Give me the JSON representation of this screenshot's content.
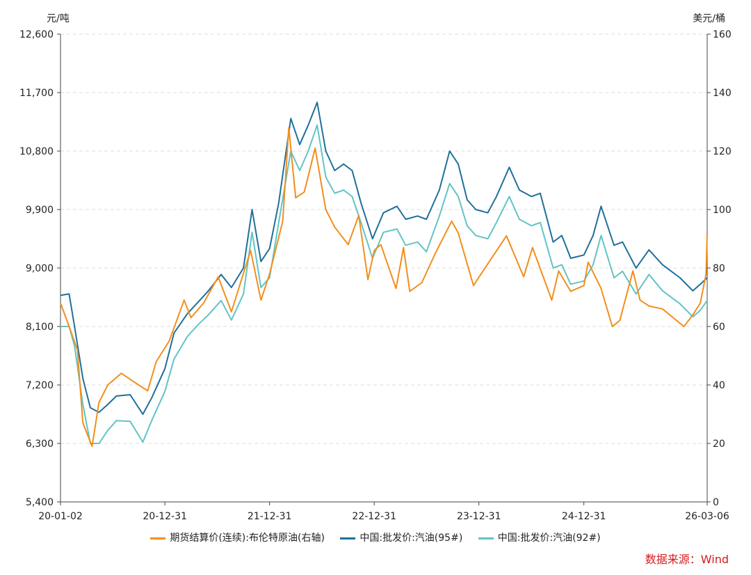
{
  "chart_data": {
    "type": "line",
    "left_axis_unit": "元/吨",
    "right_axis_unit": "美元/桶",
    "left_ylim": [
      5400,
      12600
    ],
    "left_ticks": [
      "12,600",
      "11,700",
      "10,800",
      "9,900",
      "9,000",
      "8,100",
      "7,200",
      "6,300",
      "5,400"
    ],
    "right_ylim": [
      0,
      160
    ],
    "right_ticks": [
      "160",
      "140",
      "120",
      "100",
      "80",
      "60",
      "40",
      "20",
      "0"
    ],
    "x_range": [
      "2020-01-02",
      "2026-03-06"
    ],
    "x_ticks": [
      {
        "date": "2020-01-02",
        "label": "20-01-02"
      },
      {
        "date": "2020-12-31",
        "label": "20-12-31"
      },
      {
        "date": "2021-12-31",
        "label": "21-12-31"
      },
      {
        "date": "2022-12-31",
        "label": "22-12-31"
      },
      {
        "date": "2023-12-31",
        "label": "23-12-31"
      },
      {
        "date": "2024-12-31",
        "label": "24-12-31"
      },
      {
        "date": "2026-03-06",
        "label": "26-03-06"
      }
    ],
    "grid": "horizontal-dashed",
    "legend_position": "bottom",
    "series": [
      {
        "name": "期货结算价(连续):布伦特原油(右轴)",
        "axis": "right",
        "color": "#f28e1c",
        "points": [
          [
            "2020-01-02",
            68
          ],
          [
            "2020-02-01",
            60
          ],
          [
            "2020-03-01",
            52
          ],
          [
            "2020-03-20",
            27
          ],
          [
            "2020-04-21",
            19
          ],
          [
            "2020-05-15",
            34
          ],
          [
            "2020-06-15",
            40
          ],
          [
            "2020-08-01",
            44
          ],
          [
            "2020-09-15",
            41
          ],
          [
            "2020-11-01",
            38
          ],
          [
            "2020-12-01",
            48
          ],
          [
            "2021-01-15",
            55
          ],
          [
            "2021-03-08",
            69
          ],
          [
            "2021-04-01",
            63
          ],
          [
            "2021-05-15",
            68
          ],
          [
            "2021-07-05",
            77
          ],
          [
            "2021-08-20",
            65
          ],
          [
            "2021-10-26",
            86
          ],
          [
            "2021-12-01",
            69
          ],
          [
            "2021-12-31",
            78
          ],
          [
            "2022-02-15",
            96
          ],
          [
            "2022-03-08",
            128
          ],
          [
            "2022-04-01",
            104
          ],
          [
            "2022-05-01",
            106
          ],
          [
            "2022-06-08",
            121
          ],
          [
            "2022-07-15",
            100
          ],
          [
            "2022-08-15",
            94
          ],
          [
            "2022-10-01",
            88
          ],
          [
            "2022-11-07",
            98
          ],
          [
            "2022-12-09",
            76
          ],
          [
            "2022-12-31",
            86
          ],
          [
            "2023-01-23",
            88
          ],
          [
            "2023-03-17",
            73
          ],
          [
            "2023-04-12",
            87
          ],
          [
            "2023-05-04",
            72
          ],
          [
            "2023-06-15",
            75
          ],
          [
            "2023-08-01",
            85
          ],
          [
            "2023-09-27",
            96
          ],
          [
            "2023-10-20",
            92
          ],
          [
            "2023-12-12",
            74
          ],
          [
            "2024-01-01",
            77
          ],
          [
            "2024-04-05",
            91
          ],
          [
            "2024-06-04",
            77
          ],
          [
            "2024-07-05",
            87
          ],
          [
            "2024-09-10",
            69
          ],
          [
            "2024-10-04",
            79
          ],
          [
            "2024-11-15",
            72
          ],
          [
            "2024-12-31",
            74
          ],
          [
            "2025-01-15",
            82
          ],
          [
            "2025-03-01",
            73
          ],
          [
            "2025-04-09",
            60
          ],
          [
            "2025-05-05",
            62
          ],
          [
            "2025-06-20",
            79
          ],
          [
            "2025-07-15",
            69
          ],
          [
            "2025-08-15",
            67
          ],
          [
            "2025-10-01",
            66
          ],
          [
            "2025-12-15",
            60
          ],
          [
            "2026-01-15",
            64
          ],
          [
            "2026-02-10",
            68
          ],
          [
            "2026-03-02",
            78
          ],
          [
            "2026-03-06",
            92
          ]
        ]
      },
      {
        "name": "中国:批发价:汽油(95#)",
        "axis": "left",
        "color": "#1f6f9b",
        "points": [
          [
            "2020-01-02",
            8580
          ],
          [
            "2020-02-01",
            8600
          ],
          [
            "2020-02-20",
            8100
          ],
          [
            "2020-03-20",
            7300
          ],
          [
            "2020-04-15",
            6850
          ],
          [
            "2020-05-15",
            6780
          ],
          [
            "2020-06-15",
            6900
          ],
          [
            "2020-07-15",
            7030
          ],
          [
            "2020-09-01",
            7050
          ],
          [
            "2020-10-15",
            6750
          ],
          [
            "2020-11-15",
            7000
          ],
          [
            "2020-12-31",
            7450
          ],
          [
            "2021-02-01",
            8000
          ],
          [
            "2021-03-20",
            8300
          ],
          [
            "2021-05-01",
            8500
          ],
          [
            "2021-06-01",
            8650
          ],
          [
            "2021-07-15",
            8900
          ],
          [
            "2021-08-20",
            8700
          ],
          [
            "2021-10-01",
            9000
          ],
          [
            "2021-10-31",
            9900
          ],
          [
            "2021-12-01",
            9100
          ],
          [
            "2021-12-31",
            9300
          ],
          [
            "2022-02-01",
            10000
          ],
          [
            "2022-03-15",
            11300
          ],
          [
            "2022-04-15",
            10900
          ],
          [
            "2022-05-15",
            11200
          ],
          [
            "2022-06-15",
            11550
          ],
          [
            "2022-07-15",
            10800
          ],
          [
            "2022-08-15",
            10500
          ],
          [
            "2022-09-15",
            10600
          ],
          [
            "2022-10-15",
            10500
          ],
          [
            "2022-11-15",
            10000
          ],
          [
            "2022-12-25",
            9450
          ],
          [
            "2023-02-01",
            9850
          ],
          [
            "2023-03-20",
            9950
          ],
          [
            "2023-04-20",
            9750
          ],
          [
            "2023-05-31",
            9800
          ],
          [
            "2023-07-01",
            9750
          ],
          [
            "2023-08-15",
            10200
          ],
          [
            "2023-09-20",
            10800
          ],
          [
            "2023-10-20",
            10600
          ],
          [
            "2023-11-20",
            10050
          ],
          [
            "2023-12-20",
            9900
          ],
          [
            "2024-01-31",
            9850
          ],
          [
            "2024-03-01",
            10100
          ],
          [
            "2024-04-15",
            10550
          ],
          [
            "2024-05-20",
            10200
          ],
          [
            "2024-07-01",
            10100
          ],
          [
            "2024-08-01",
            10150
          ],
          [
            "2024-09-15",
            9400
          ],
          [
            "2024-10-15",
            9500
          ],
          [
            "2024-11-15",
            9150
          ],
          [
            "2024-12-31",
            9200
          ],
          [
            "2025-02-01",
            9500
          ],
          [
            "2025-03-01",
            9950
          ],
          [
            "2025-04-15",
            9350
          ],
          [
            "2025-05-15",
            9400
          ],
          [
            "2025-07-01",
            9000
          ],
          [
            "2025-08-15",
            9280
          ],
          [
            "2025-10-01",
            9050
          ],
          [
            "2025-12-01",
            8850
          ],
          [
            "2026-01-15",
            8650
          ],
          [
            "2026-02-10",
            8750
          ],
          [
            "2026-03-06",
            8850
          ]
        ]
      },
      {
        "name": "中国:批发价:汽油(92#)",
        "axis": "left",
        "color": "#62c4c4",
        "points": [
          [
            "2020-01-02",
            8100
          ],
          [
            "2020-02-01",
            8100
          ],
          [
            "2020-02-20",
            7800
          ],
          [
            "2020-03-20",
            6900
          ],
          [
            "2020-04-15",
            6300
          ],
          [
            "2020-05-15",
            6300
          ],
          [
            "2020-06-15",
            6500
          ],
          [
            "2020-07-15",
            6650
          ],
          [
            "2020-09-01",
            6640
          ],
          [
            "2020-10-15",
            6320
          ],
          [
            "2020-11-15",
            6650
          ],
          [
            "2020-12-31",
            7100
          ],
          [
            "2021-02-01",
            7600
          ],
          [
            "2021-03-20",
            7950
          ],
          [
            "2021-05-01",
            8150
          ],
          [
            "2021-06-01",
            8280
          ],
          [
            "2021-07-15",
            8500
          ],
          [
            "2021-08-20",
            8200
          ],
          [
            "2021-10-01",
            8600
          ],
          [
            "2021-10-31",
            9550
          ],
          [
            "2021-12-01",
            8700
          ],
          [
            "2021-12-31",
            8850
          ],
          [
            "2022-02-01",
            9700
          ],
          [
            "2022-03-15",
            10800
          ],
          [
            "2022-04-15",
            10500
          ],
          [
            "2022-05-15",
            10800
          ],
          [
            "2022-06-15",
            11200
          ],
          [
            "2022-07-15",
            10400
          ],
          [
            "2022-08-15",
            10150
          ],
          [
            "2022-09-15",
            10200
          ],
          [
            "2022-10-15",
            10100
          ],
          [
            "2022-11-15",
            9700
          ],
          [
            "2022-12-25",
            9150
          ],
          [
            "2023-02-01",
            9550
          ],
          [
            "2023-03-20",
            9600
          ],
          [
            "2023-04-20",
            9350
          ],
          [
            "2023-05-31",
            9400
          ],
          [
            "2023-07-01",
            9250
          ],
          [
            "2023-08-15",
            9800
          ],
          [
            "2023-09-20",
            10300
          ],
          [
            "2023-10-20",
            10100
          ],
          [
            "2023-11-20",
            9650
          ],
          [
            "2023-12-20",
            9500
          ],
          [
            "2024-01-31",
            9450
          ],
          [
            "2024-03-01",
            9700
          ],
          [
            "2024-04-15",
            10100
          ],
          [
            "2024-05-20",
            9750
          ],
          [
            "2024-07-01",
            9650
          ],
          [
            "2024-08-01",
            9700
          ],
          [
            "2024-09-15",
            9000
          ],
          [
            "2024-10-15",
            9050
          ],
          [
            "2024-11-15",
            8750
          ],
          [
            "2024-12-31",
            8800
          ],
          [
            "2025-02-01",
            9050
          ],
          [
            "2025-03-01",
            9500
          ],
          [
            "2025-04-15",
            8850
          ],
          [
            "2025-05-15",
            8950
          ],
          [
            "2025-07-01",
            8600
          ],
          [
            "2025-08-15",
            8900
          ],
          [
            "2025-10-01",
            8650
          ],
          [
            "2025-12-01",
            8450
          ],
          [
            "2026-01-15",
            8250
          ],
          [
            "2026-02-10",
            8350
          ],
          [
            "2026-03-06",
            8500
          ]
        ]
      }
    ]
  },
  "source": "数据来源：Wind"
}
